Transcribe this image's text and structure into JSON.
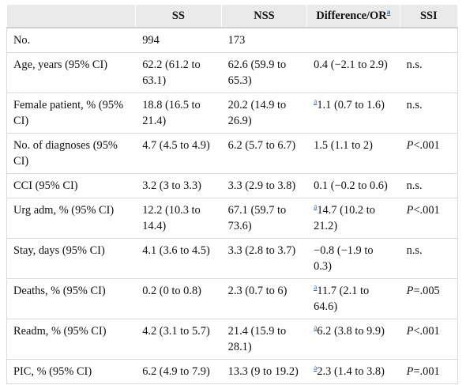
{
  "header": {
    "col1": "SS",
    "col2": "NSS",
    "col3": "Difference/OR",
    "col3_sup": "a",
    "col4": "SSI"
  },
  "rows": [
    {
      "label": "No.",
      "ss": "994",
      "nss": "173",
      "diff_sup": "",
      "diff": "",
      "ssi_p": "",
      "ssi": ""
    },
    {
      "label": "Age, years (95% CI)",
      "ss": "62.2 (61.2 to 63.1)",
      "nss": "62.6 (59.9 to 65.3)",
      "diff_sup": "",
      "diff": "0.4 (−2.1 to 2.9)",
      "ssi_p": "",
      "ssi": "n.s."
    },
    {
      "label": "Female patient, % (95% CI)",
      "ss": "18.8 (16.5 to 21.4)",
      "nss": "20.2 (14.9 to 26.9)",
      "diff_sup": "a",
      "diff": "1.1 (0.7 to 1.6)",
      "ssi_p": "",
      "ssi": "n.s."
    },
    {
      "label": "No. of diagnoses (95% CI)",
      "ss": "4.7 (4.5 to 4.9)",
      "nss": "6.2 (5.7 to 6.7)",
      "diff_sup": "",
      "diff": "1.5 (1.1 to 2)",
      "ssi_p": "P",
      "ssi": "<.001"
    },
    {
      "label": "CCI (95% CI)",
      "ss": "3.2 (3 to 3.3)",
      "nss": "3.3 (2.9 to 3.8)",
      "diff_sup": "",
      "diff": "0.1 (−0.2 to 0.6)",
      "ssi_p": "",
      "ssi": "n.s."
    },
    {
      "label": "Urg adm, % (95% CI)",
      "ss": "12.2 (10.3 to 14.4)",
      "nss": "67.1 (59.7 to 73.6)",
      "diff_sup": "a",
      "diff": "14.7 (10.2 to 21.2)",
      "ssi_p": "P",
      "ssi": "<.001"
    },
    {
      "label": "Stay, days (95% CI)",
      "ss": "4.1 (3.6 to 4.5)",
      "nss": "3.3 (2.8 to 3.7)",
      "diff_sup": "",
      "diff": "−0.8 (−1.9 to 0.3)",
      "ssi_p": "",
      "ssi": "n.s."
    },
    {
      "label": "Deaths, % (95% CI)",
      "ss": "0.2 (0 to 0.8)",
      "nss": "2.3 (0.7 to 6)",
      "diff_sup": "a",
      "diff": "11.7 (2.1 to 64.6)",
      "ssi_p": "P",
      "ssi": "=.005"
    },
    {
      "label": "Readm, % (95% CI)",
      "ss": "4.2 (3.1 to 5.7)",
      "nss": "21.4 (15.9 to 28.1)",
      "diff_sup": "a",
      "diff": "6.2 (3.8 to 9.9)",
      "ssi_p": "P",
      "ssi": "<.001"
    },
    {
      "label": "PIC, % (95% CI)",
      "ss": "6.2 (4.9 to 7.9)",
      "nss": "13.3 (9 to 19.2)",
      "diff_sup": "a",
      "diff": "2.3 (1.4 to 3.8)",
      "ssi_p": "P",
      "ssi": "=.001"
    }
  ]
}
